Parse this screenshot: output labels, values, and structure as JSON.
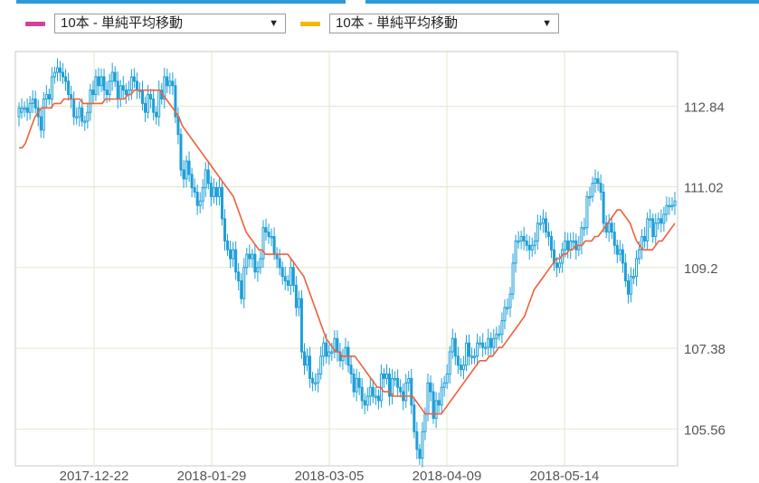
{
  "indicators": [
    {
      "color": "#d6409a",
      "label": "10本 - 単純平均移動",
      "arrow": "▼"
    },
    {
      "color": "#f5b800",
      "label": "10本 - 単純平均移動",
      "arrow": "▼"
    }
  ],
  "chart_data": {
    "type": "candlestick",
    "title": "",
    "xlabel": "",
    "ylabel": "",
    "grid": true,
    "y_ticks": [
      112.84,
      111.02,
      109.2,
      107.38,
      105.56
    ],
    "x_ticks": [
      "2017-12-22",
      "2018-01-29",
      "2018-03-05",
      "2018-04-09",
      "2018-05-14"
    ],
    "ylim": [
      104.73,
      114.07
    ],
    "up_color": "#1e9fd8",
    "ma_color": "#f0603a",
    "series": [
      {
        "name": "",
        "type": "candlestick",
        "close": [
          112.8,
          112.8,
          112.8,
          112.7,
          112.9,
          113.0,
          112.8,
          112.6,
          112.3,
          113.0,
          113.1,
          113.0,
          113.5,
          113.6,
          113.7,
          113.6,
          113.5,
          113.4,
          113.1,
          113.0,
          112.6,
          112.6,
          112.8,
          112.5,
          112.5,
          112.7,
          113.2,
          113.1,
          113.5,
          113.3,
          113.5,
          113.2,
          113.1,
          113.4,
          113.6,
          113.4,
          113.0,
          113.3,
          113.2,
          113.1,
          113.2,
          113.5,
          113.4,
          113.2,
          113.2,
          112.9,
          112.7,
          113.1,
          113.0,
          112.7,
          112.6,
          113.2,
          113.0,
          113.5,
          113.3,
          113.4,
          113.3,
          112.6,
          112.2,
          111.4,
          111.2,
          111.6,
          111.3,
          111.0,
          110.9,
          110.6,
          110.7,
          111.0,
          111.4,
          111.1,
          110.8,
          111.0,
          110.8,
          111.0,
          110.3,
          109.8,
          109.6,
          109.4,
          109.6,
          109.1,
          108.9,
          108.5,
          109.2,
          109.5,
          109.4,
          109.5,
          109.1,
          109.2,
          109.4,
          110.1,
          110.0,
          109.9,
          109.9,
          109.5,
          109.4,
          109.2,
          109.0,
          108.9,
          108.8,
          109.2,
          108.8,
          108.3,
          108.5,
          107.3,
          107.0,
          107.2,
          106.7,
          106.6,
          106.6,
          106.8,
          107.2,
          107.5,
          107.2,
          107.3,
          107.3,
          107.6,
          107.3,
          107.1,
          107.2,
          107.4,
          107.0,
          106.8,
          106.4,
          106.7,
          106.5,
          106.2,
          106.1,
          106.3,
          106.5,
          106.3,
          106.3,
          106.2,
          106.8,
          106.7,
          106.8,
          106.3,
          106.7,
          106.7,
          106.5,
          106.4,
          106.2,
          106.6,
          106.7,
          106.1,
          105.5,
          105.1,
          104.9,
          105.5,
          105.9,
          106.6,
          106.4,
          105.8,
          106.2,
          106.1,
          106.5,
          106.6,
          106.8,
          107.3,
          107.6,
          107.2,
          107.0,
          106.9,
          107.0,
          107.5,
          107.2,
          107.2,
          107.2,
          107.5,
          107.5,
          107.4,
          107.4,
          107.6,
          107.4,
          107.6,
          107.7,
          107.7,
          108.0,
          108.3,
          108.3,
          108.6,
          109.3,
          109.8,
          109.8,
          109.9,
          109.8,
          109.7,
          109.6,
          109.7,
          109.8,
          110.2,
          110.2,
          110.3,
          110.0,
          109.9,
          109.6,
          109.3,
          109.2,
          109.3,
          109.6,
          109.8,
          109.6,
          109.8,
          109.8,
          109.6,
          109.7,
          110.1,
          110.1,
          110.8,
          110.8,
          111.1,
          111.2,
          111.1,
          110.9,
          110.2,
          110.0,
          110.2,
          110.0,
          109.7,
          109.5,
          109.6,
          109.3,
          108.9,
          108.6,
          109.0,
          109.0,
          109.4,
          109.6,
          109.9,
          109.8,
          110.3,
          110.3,
          109.9,
          110.2,
          110.3,
          110.2,
          110.4,
          110.6,
          110.6,
          110.6,
          110.7
        ],
        "open": [
          112.6,
          112.7,
          112.8,
          112.8,
          112.7,
          112.9,
          113.0,
          112.8,
          112.6,
          112.3,
          113.0,
          113.1,
          113.0,
          113.5,
          113.6,
          113.7,
          113.6,
          113.5,
          113.4,
          113.1,
          113.0,
          112.6,
          112.6,
          112.8,
          112.5,
          112.5,
          112.7,
          113.2,
          113.1,
          113.5,
          113.3,
          113.5,
          113.2,
          113.1,
          113.4,
          113.6,
          113.4,
          113.0,
          113.3,
          113.2,
          113.1,
          113.2,
          113.5,
          113.4,
          113.2,
          113.2,
          112.9,
          112.7,
          113.1,
          113.0,
          112.7,
          112.6,
          113.2,
          113.0,
          113.5,
          113.3,
          113.4,
          113.3,
          112.6,
          112.2,
          111.4,
          111.2,
          111.6,
          111.3,
          111.0,
          110.9,
          110.6,
          110.7,
          111.0,
          111.4,
          111.1,
          110.8,
          111.0,
          110.8,
          111.0,
          110.3,
          109.8,
          109.6,
          109.4,
          109.6,
          109.1,
          108.9,
          108.5,
          109.2,
          109.5,
          109.4,
          109.5,
          109.1,
          109.2,
          109.4,
          110.1,
          110.0,
          109.9,
          109.9,
          109.5,
          109.4,
          109.2,
          109.0,
          108.9,
          108.8,
          109.2,
          108.8,
          108.3,
          108.5,
          107.3,
          107.0,
          107.2,
          106.7,
          106.6,
          106.6,
          106.8,
          107.2,
          107.5,
          107.2,
          107.3,
          107.3,
          107.6,
          107.3,
          107.1,
          107.2,
          107.4,
          107.0,
          106.8,
          106.4,
          106.7,
          106.5,
          106.2,
          106.1,
          106.3,
          106.5,
          106.3,
          106.3,
          106.2,
          106.8,
          106.7,
          106.8,
          106.3,
          106.7,
          106.7,
          106.5,
          106.4,
          106.2,
          106.6,
          106.7,
          106.1,
          105.5,
          105.1,
          104.9,
          105.5,
          105.9,
          106.6,
          106.4,
          105.8,
          106.2,
          106.1,
          106.5,
          106.6,
          106.8,
          107.3,
          107.6,
          107.2,
          107.0,
          106.9,
          107.0,
          107.5,
          107.2,
          107.2,
          107.2,
          107.5,
          107.5,
          107.4,
          107.4,
          107.6,
          107.4,
          107.6,
          107.7,
          107.7,
          108.0,
          108.3,
          108.3,
          108.6,
          109.3,
          109.8,
          109.8,
          109.9,
          109.8,
          109.7,
          109.6,
          109.7,
          109.8,
          110.2,
          110.2,
          110.3,
          110.0,
          109.9,
          109.6,
          109.3,
          109.2,
          109.3,
          109.6,
          109.8,
          109.6,
          109.8,
          109.8,
          109.6,
          109.7,
          110.1,
          110.1,
          110.8,
          110.8,
          111.1,
          111.2,
          111.1,
          110.9,
          110.2,
          110.0,
          110.2,
          110.0,
          109.7,
          109.5,
          109.6,
          109.3,
          108.9,
          108.6,
          109.0,
          109.0,
          109.4,
          109.6,
          109.9,
          109.8,
          110.3,
          110.3,
          109.9,
          110.2,
          110.3,
          110.2,
          110.4,
          110.6,
          110.6,
          110.6
        ],
        "ma": [
          111.9,
          111.9,
          112.0,
          112.2,
          112.4,
          112.6,
          112.7,
          112.8,
          112.8,
          112.8,
          112.8,
          112.9,
          112.9,
          112.9,
          113.0,
          113.0,
          113.0,
          113.0,
          113.0,
          113.0,
          112.9,
          112.9,
          112.9,
          112.9,
          112.9,
          112.9,
          112.9,
          113.0,
          113.0,
          113.0,
          113.0,
          113.0,
          113.0,
          113.0,
          113.1,
          113.1,
          113.2,
          113.2,
          113.2,
          113.2,
          113.2,
          113.2,
          113.2,
          113.2,
          113.2,
          113.1,
          113.0,
          112.9,
          112.8,
          112.7,
          112.6,
          112.4,
          112.3,
          112.2,
          112.1,
          112.0,
          111.9,
          111.8,
          111.7,
          111.6,
          111.5,
          111.4,
          111.3,
          111.2,
          111.1,
          111.0,
          110.9,
          110.8,
          110.6,
          110.4,
          110.2,
          110.0,
          109.9,
          109.8,
          109.7,
          109.6,
          109.6,
          109.5,
          109.5,
          109.5,
          109.5,
          109.5,
          109.5,
          109.5,
          109.5,
          109.4,
          109.3,
          109.2,
          109.1,
          109.0,
          108.8,
          108.6,
          108.4,
          108.2,
          108.0,
          107.8,
          107.6,
          107.5,
          107.4,
          107.3,
          107.3,
          107.2,
          107.2,
          107.2,
          107.2,
          107.2,
          107.1,
          107.0,
          106.9,
          106.8,
          106.7,
          106.6,
          106.5,
          106.5,
          106.4,
          106.4,
          106.4,
          106.3,
          106.3,
          106.3,
          106.3,
          106.3,
          106.3,
          106.3,
          106.2,
          106.1,
          106.0,
          105.9,
          105.9,
          105.9,
          105.9,
          105.9,
          105.9,
          106.0,
          106.1,
          106.2,
          106.3,
          106.4,
          106.5,
          106.6,
          106.7,
          106.8,
          106.9,
          107.0,
          107.1,
          107.1,
          107.1,
          107.2,
          107.2,
          107.3,
          107.4,
          107.4,
          107.5,
          107.6,
          107.7,
          107.8,
          107.9,
          108.0,
          108.1,
          108.3,
          108.5,
          108.7,
          108.8,
          108.9,
          109.0,
          109.1,
          109.2,
          109.3,
          109.4,
          109.4,
          109.5,
          109.5,
          109.6,
          109.6,
          109.7,
          109.7,
          109.7,
          109.8,
          109.8,
          109.8,
          109.9,
          109.9,
          110.0,
          110.1,
          110.2,
          110.3,
          110.4,
          110.5,
          110.5,
          110.4,
          110.3,
          110.2,
          110.0,
          109.8,
          109.7,
          109.6,
          109.6,
          109.6,
          109.6,
          109.7,
          109.8,
          109.8,
          109.9,
          110.0,
          110.1,
          110.2
        ]
      }
    ]
  }
}
